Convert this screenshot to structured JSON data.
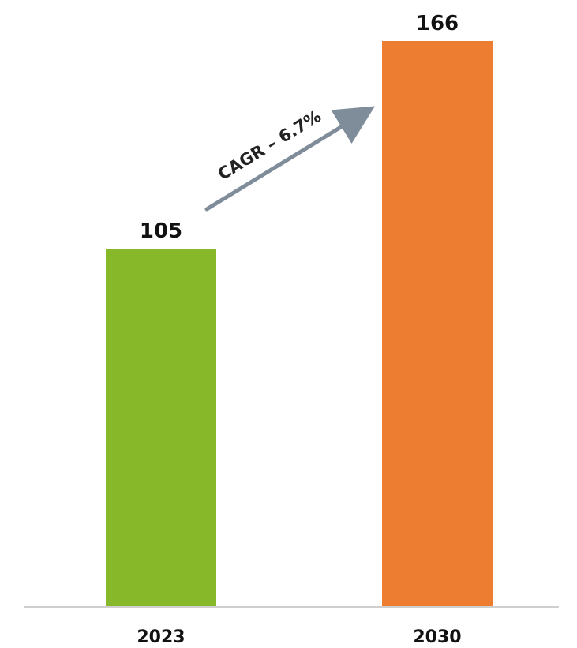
{
  "chart_data": {
    "type": "bar",
    "categories": [
      "2023",
      "2030"
    ],
    "values": [
      105,
      166
    ],
    "data_labels": [
      "105",
      "166"
    ],
    "colors": [
      "#86b829",
      "#ed7d31"
    ],
    "annotation": "CAGR – 6.7%",
    "title": "",
    "xlabel": "",
    "ylabel": "",
    "ylim": [
      0,
      166
    ],
    "grid": false,
    "legend": "none"
  },
  "colors": {
    "axis": "#cfcfcf",
    "arrow": "#7f8c9a"
  }
}
